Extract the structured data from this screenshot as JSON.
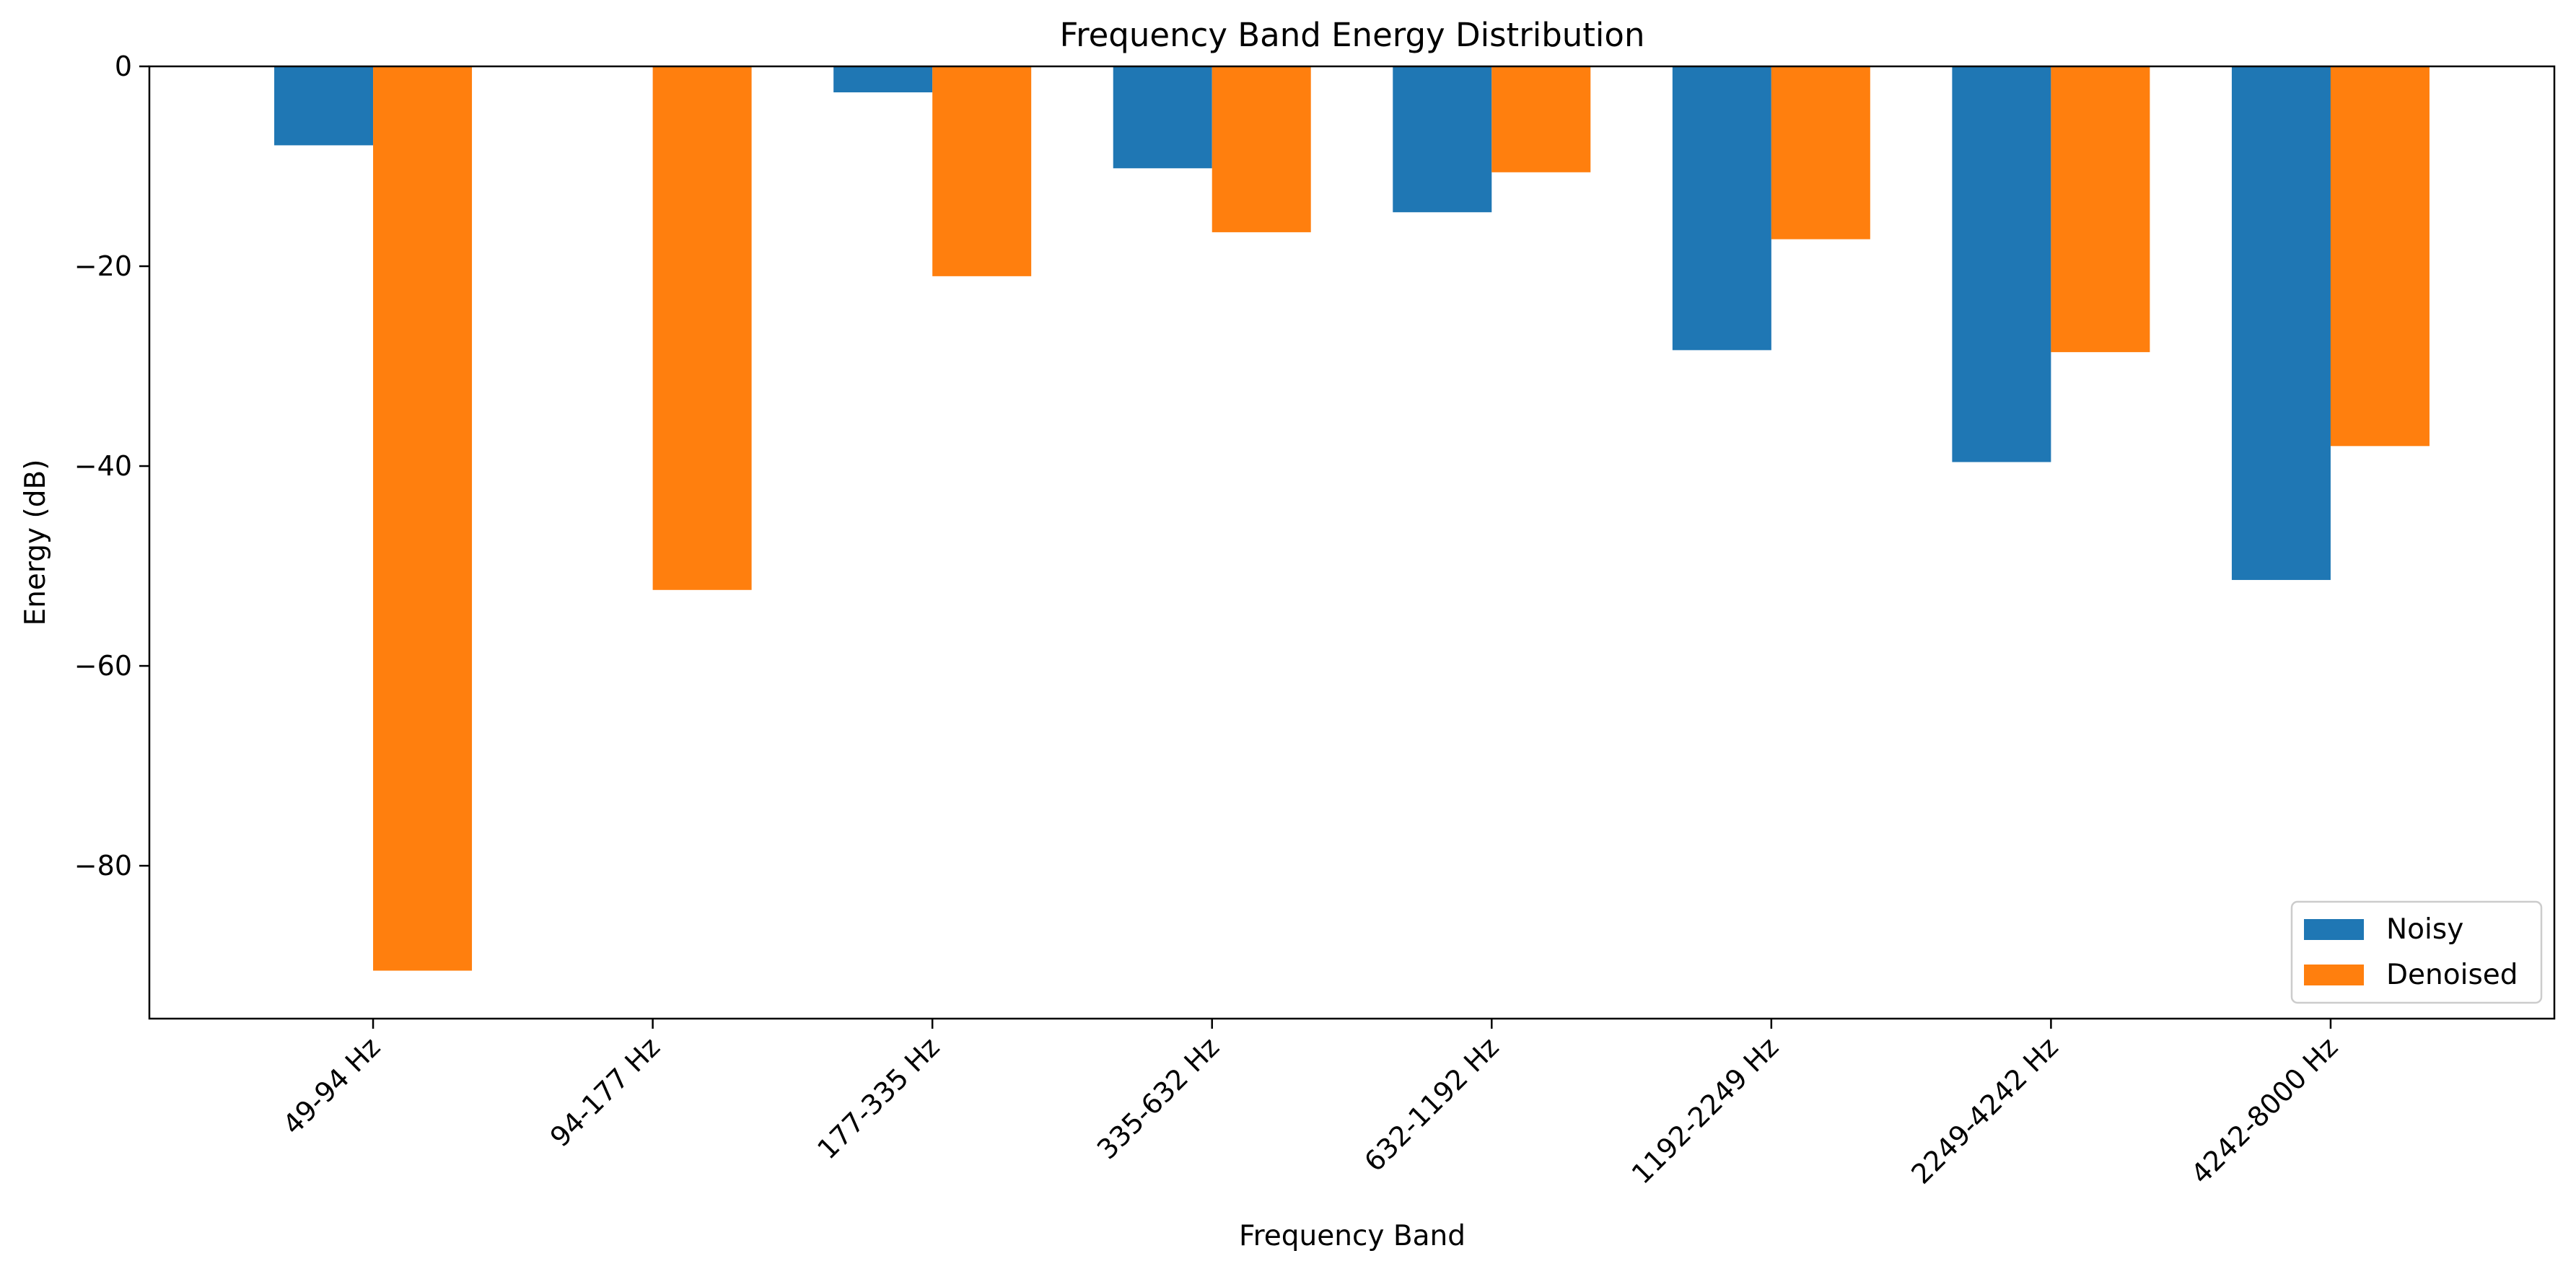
{
  "chart_data": {
    "type": "bar",
    "title": "Frequency Band Energy Distribution",
    "xlabel": "Frequency Band",
    "ylabel": "Energy (dB)",
    "categories": [
      "49-94 Hz",
      "94-177 Hz",
      "177-335 Hz",
      "335-632 Hz",
      "632-1192 Hz",
      "1192-2249 Hz",
      "2249-4242 Hz",
      "4242-8000 Hz"
    ],
    "series": [
      {
        "name": "Noisy",
        "color": "#1f77b4",
        "values": [
          -7.9,
          0.0,
          -2.6,
          -10.2,
          -14.6,
          -28.4,
          -39.6,
          -51.4
        ]
      },
      {
        "name": "Denoised",
        "color": "#ff7f0e",
        "values": [
          -90.5,
          -52.4,
          -21.0,
          -16.6,
          -10.6,
          -17.3,
          -28.6,
          -38.0
        ]
      }
    ],
    "yticks": [
      0,
      -20,
      -40,
      -60,
      -80
    ],
    "ytick_labels": [
      "0",
      "−20",
      "−40",
      "−60",
      "−80"
    ],
    "ylim": [
      -95.3,
      0
    ],
    "grid": false,
    "legend_position": "lower right"
  }
}
